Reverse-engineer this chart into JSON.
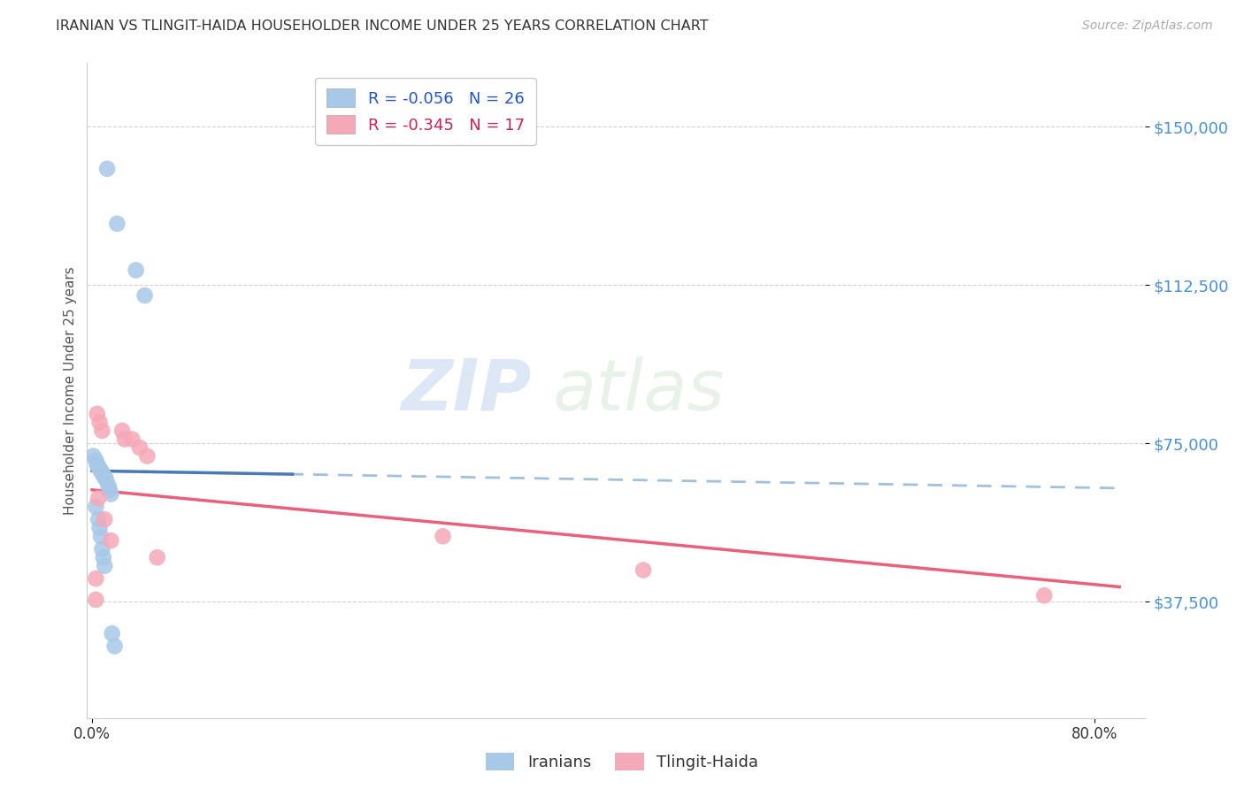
{
  "title": "IRANIAN VS TLINGIT-HAIDA HOUSEHOLDER INCOME UNDER 25 YEARS CORRELATION CHART",
  "source": "Source: ZipAtlas.com",
  "ylabel": "Householder Income Under 25 years",
  "ytick_labels": [
    "$37,500",
    "$75,000",
    "$112,500",
    "$150,000"
  ],
  "ytick_values": [
    37500,
    75000,
    112500,
    150000
  ],
  "ymin": 10000,
  "ymax": 165000,
  "xmin": -0.004,
  "xmax": 0.84,
  "watermark_zip": "ZIP",
  "watermark_atlas": "atlas",
  "legend_iranian": "R = -0.056   N = 26",
  "legend_tlingit": "R = -0.345   N = 17",
  "iranian_color": "#a8c8e8",
  "tlingit_color": "#f5a8b8",
  "trendline_iranian_solid_color": "#4a7ab5",
  "trendline_iranian_dash_color": "#a0c0e0",
  "trendline_tlingit_color": "#e8607a",
  "iranians_x": [
    0.012,
    0.02,
    0.035,
    0.042,
    0.001,
    0.003,
    0.004,
    0.005,
    0.006,
    0.007,
    0.008,
    0.009,
    0.01,
    0.011,
    0.013,
    0.014,
    0.015,
    0.003,
    0.005,
    0.006,
    0.007,
    0.008,
    0.009,
    0.01,
    0.016,
    0.018
  ],
  "iranians_y": [
    140000,
    127000,
    116000,
    110000,
    72000,
    71000,
    70000,
    69500,
    69000,
    68500,
    68000,
    67500,
    67000,
    66500,
    65000,
    64000,
    63000,
    60000,
    57000,
    55000,
    53000,
    50000,
    48000,
    46000,
    30000,
    27000
  ],
  "tlingit_x": [
    0.004,
    0.006,
    0.008,
    0.024,
    0.026,
    0.032,
    0.038,
    0.044,
    0.005,
    0.01,
    0.015,
    0.052,
    0.28,
    0.44,
    0.003,
    0.76,
    0.003
  ],
  "tlingit_y": [
    82000,
    80000,
    78000,
    78000,
    76000,
    76000,
    74000,
    72000,
    62000,
    57000,
    52000,
    48000,
    53000,
    45000,
    43000,
    39000,
    38000
  ],
  "background_color": "#ffffff",
  "grid_color": "#d0d0d0",
  "trendline_xmin": 0.0,
  "trendline_xmax": 0.82,
  "iranian_trendline_start_x": 0.0,
  "iranian_trendline_solid_end_x": 0.16,
  "tlingit_trendline_start_x": 0.0,
  "tlingit_trendline_end_x": 0.82
}
